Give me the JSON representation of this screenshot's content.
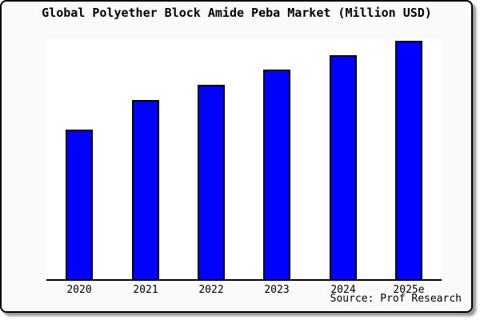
{
  "card": {
    "title": "Global Polyether Block Amide Peba Market (Million USD)",
    "source": "Source: Prof Research"
  },
  "colors": {
    "bar_fill": "#0000ff",
    "bar_border": "#000000",
    "card_background": "#fafafa",
    "plot_background": "#ffffff",
    "axis": "#000000",
    "text": "#000000"
  },
  "chart_data": {
    "type": "bar",
    "title": "Global Polyether Block Amide Peba Market (Million USD)",
    "categories": [
      "2020",
      "2021",
      "2022",
      "2023",
      "2024",
      "2025e"
    ],
    "values": [
      63,
      75.3,
      81.7,
      88,
      94,
      100
    ],
    "xlabel": "",
    "ylabel": "",
    "ylim": [
      0,
      100.7
    ],
    "y_axis_tick_labels_shown": false,
    "grid": false,
    "legend": false,
    "annotations": [
      "Source: Prof Research"
    ]
  }
}
